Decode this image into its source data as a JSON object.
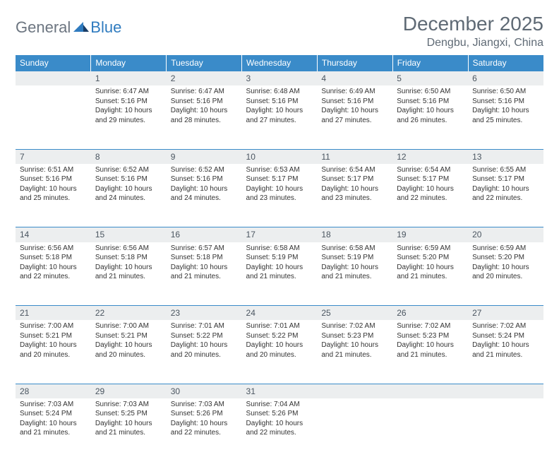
{
  "logo": {
    "general": "General",
    "blue": "Blue"
  },
  "title": {
    "month": "December 2025",
    "location": "Dengbu, Jiangxi, China"
  },
  "columns": [
    "Sunday",
    "Monday",
    "Tuesday",
    "Wednesday",
    "Thursday",
    "Friday",
    "Saturday"
  ],
  "colors": {
    "header_bg": "#3a8bc9",
    "header_text": "#ffffff",
    "daynum_bg": "#eceeef",
    "daynum_text": "#4a5560",
    "border": "#3a8bc9",
    "text": "#333333",
    "logo_gray": "#6c7580",
    "logo_blue": "#2f7bbf"
  },
  "typography": {
    "title_fontsize": 28,
    "location_fontsize": 16,
    "header_fontsize": 12,
    "daynum_fontsize": 12,
    "cell_fontsize": 10
  },
  "weeks": [
    [
      {
        "num": ""
      },
      {
        "num": "1",
        "sunrise": "Sunrise: 6:47 AM",
        "sunset": "Sunset: 5:16 PM",
        "daylight": "Daylight: 10 hours and 29 minutes."
      },
      {
        "num": "2",
        "sunrise": "Sunrise: 6:47 AM",
        "sunset": "Sunset: 5:16 PM",
        "daylight": "Daylight: 10 hours and 28 minutes."
      },
      {
        "num": "3",
        "sunrise": "Sunrise: 6:48 AM",
        "sunset": "Sunset: 5:16 PM",
        "daylight": "Daylight: 10 hours and 27 minutes."
      },
      {
        "num": "4",
        "sunrise": "Sunrise: 6:49 AM",
        "sunset": "Sunset: 5:16 PM",
        "daylight": "Daylight: 10 hours and 27 minutes."
      },
      {
        "num": "5",
        "sunrise": "Sunrise: 6:50 AM",
        "sunset": "Sunset: 5:16 PM",
        "daylight": "Daylight: 10 hours and 26 minutes."
      },
      {
        "num": "6",
        "sunrise": "Sunrise: 6:50 AM",
        "sunset": "Sunset: 5:16 PM",
        "daylight": "Daylight: 10 hours and 25 minutes."
      }
    ],
    [
      {
        "num": "7",
        "sunrise": "Sunrise: 6:51 AM",
        "sunset": "Sunset: 5:16 PM",
        "daylight": "Daylight: 10 hours and 25 minutes."
      },
      {
        "num": "8",
        "sunrise": "Sunrise: 6:52 AM",
        "sunset": "Sunset: 5:16 PM",
        "daylight": "Daylight: 10 hours and 24 minutes."
      },
      {
        "num": "9",
        "sunrise": "Sunrise: 6:52 AM",
        "sunset": "Sunset: 5:16 PM",
        "daylight": "Daylight: 10 hours and 24 minutes."
      },
      {
        "num": "10",
        "sunrise": "Sunrise: 6:53 AM",
        "sunset": "Sunset: 5:17 PM",
        "daylight": "Daylight: 10 hours and 23 minutes."
      },
      {
        "num": "11",
        "sunrise": "Sunrise: 6:54 AM",
        "sunset": "Sunset: 5:17 PM",
        "daylight": "Daylight: 10 hours and 23 minutes."
      },
      {
        "num": "12",
        "sunrise": "Sunrise: 6:54 AM",
        "sunset": "Sunset: 5:17 PM",
        "daylight": "Daylight: 10 hours and 22 minutes."
      },
      {
        "num": "13",
        "sunrise": "Sunrise: 6:55 AM",
        "sunset": "Sunset: 5:17 PM",
        "daylight": "Daylight: 10 hours and 22 minutes."
      }
    ],
    [
      {
        "num": "14",
        "sunrise": "Sunrise: 6:56 AM",
        "sunset": "Sunset: 5:18 PM",
        "daylight": "Daylight: 10 hours and 22 minutes."
      },
      {
        "num": "15",
        "sunrise": "Sunrise: 6:56 AM",
        "sunset": "Sunset: 5:18 PM",
        "daylight": "Daylight: 10 hours and 21 minutes."
      },
      {
        "num": "16",
        "sunrise": "Sunrise: 6:57 AM",
        "sunset": "Sunset: 5:18 PM",
        "daylight": "Daylight: 10 hours and 21 minutes."
      },
      {
        "num": "17",
        "sunrise": "Sunrise: 6:58 AM",
        "sunset": "Sunset: 5:19 PM",
        "daylight": "Daylight: 10 hours and 21 minutes."
      },
      {
        "num": "18",
        "sunrise": "Sunrise: 6:58 AM",
        "sunset": "Sunset: 5:19 PM",
        "daylight": "Daylight: 10 hours and 21 minutes."
      },
      {
        "num": "19",
        "sunrise": "Sunrise: 6:59 AM",
        "sunset": "Sunset: 5:20 PM",
        "daylight": "Daylight: 10 hours and 21 minutes."
      },
      {
        "num": "20",
        "sunrise": "Sunrise: 6:59 AM",
        "sunset": "Sunset: 5:20 PM",
        "daylight": "Daylight: 10 hours and 20 minutes."
      }
    ],
    [
      {
        "num": "21",
        "sunrise": "Sunrise: 7:00 AM",
        "sunset": "Sunset: 5:21 PM",
        "daylight": "Daylight: 10 hours and 20 minutes."
      },
      {
        "num": "22",
        "sunrise": "Sunrise: 7:00 AM",
        "sunset": "Sunset: 5:21 PM",
        "daylight": "Daylight: 10 hours and 20 minutes."
      },
      {
        "num": "23",
        "sunrise": "Sunrise: 7:01 AM",
        "sunset": "Sunset: 5:22 PM",
        "daylight": "Daylight: 10 hours and 20 minutes."
      },
      {
        "num": "24",
        "sunrise": "Sunrise: 7:01 AM",
        "sunset": "Sunset: 5:22 PM",
        "daylight": "Daylight: 10 hours and 20 minutes."
      },
      {
        "num": "25",
        "sunrise": "Sunrise: 7:02 AM",
        "sunset": "Sunset: 5:23 PM",
        "daylight": "Daylight: 10 hours and 21 minutes."
      },
      {
        "num": "26",
        "sunrise": "Sunrise: 7:02 AM",
        "sunset": "Sunset: 5:23 PM",
        "daylight": "Daylight: 10 hours and 21 minutes."
      },
      {
        "num": "27",
        "sunrise": "Sunrise: 7:02 AM",
        "sunset": "Sunset: 5:24 PM",
        "daylight": "Daylight: 10 hours and 21 minutes."
      }
    ],
    [
      {
        "num": "28",
        "sunrise": "Sunrise: 7:03 AM",
        "sunset": "Sunset: 5:24 PM",
        "daylight": "Daylight: 10 hours and 21 minutes."
      },
      {
        "num": "29",
        "sunrise": "Sunrise: 7:03 AM",
        "sunset": "Sunset: 5:25 PM",
        "daylight": "Daylight: 10 hours and 21 minutes."
      },
      {
        "num": "30",
        "sunrise": "Sunrise: 7:03 AM",
        "sunset": "Sunset: 5:26 PM",
        "daylight": "Daylight: 10 hours and 22 minutes."
      },
      {
        "num": "31",
        "sunrise": "Sunrise: 7:04 AM",
        "sunset": "Sunset: 5:26 PM",
        "daylight": "Daylight: 10 hours and 22 minutes."
      },
      {
        "num": ""
      },
      {
        "num": ""
      },
      {
        "num": ""
      }
    ]
  ]
}
